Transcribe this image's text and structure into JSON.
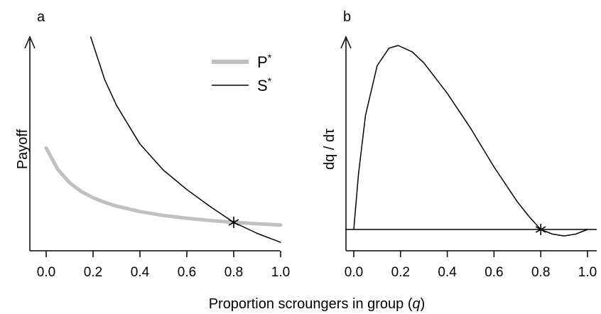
{
  "xlabel_prefix": "Proportion scroungers in group (",
  "xlabel_var": "q",
  "xlabel_suffix": ")",
  "chart_data": [
    {
      "panel": "a",
      "type": "line",
      "ylabel": "Payoff",
      "xlim": [
        0,
        1
      ],
      "ylim": [
        0,
        1
      ],
      "x_ticks": [
        "0.0",
        "0.2",
        "0.4",
        "0.6",
        "0.8",
        "1.0"
      ],
      "y_ticks": [],
      "grid": false,
      "legend_position": "top-right",
      "series": [
        {
          "name": "P",
          "name_superscript": "*",
          "color": "#c0c0c0",
          "x": [
            0.0,
            0.05,
            0.1,
            0.15,
            0.2,
            0.25,
            0.3,
            0.4,
            0.5,
            0.6,
            0.7,
            0.8,
            0.9,
            1.0
          ],
          "y": [
            0.465,
            0.36,
            0.295,
            0.252,
            0.222,
            0.199,
            0.181,
            0.154,
            0.135,
            0.121,
            0.11,
            0.101,
            0.094,
            0.088
          ]
        },
        {
          "name": "S",
          "name_superscript": "*",
          "color": "#000000",
          "x": [
            0.19,
            0.25,
            0.3,
            0.4,
            0.5,
            0.6,
            0.7,
            0.8,
            0.9,
            1.0
          ],
          "y": [
            1.01,
            0.8,
            0.675,
            0.485,
            0.357,
            0.262,
            0.178,
            0.101,
            0.047,
            0.003
          ]
        }
      ],
      "markers": [
        {
          "x": 0.8,
          "y": 0.101,
          "symbol": "asterisk"
        }
      ]
    },
    {
      "panel": "b",
      "type": "line",
      "ylabel": "dq / dτ",
      "xlim": [
        0,
        1
      ],
      "ylim": [
        -0.05,
        1
      ],
      "x_ticks": [
        "0.0",
        "0.2",
        "0.4",
        "0.6",
        "0.8",
        "1.0"
      ],
      "y_ticks": [],
      "grid": false,
      "reference_line_y": 0,
      "series": [
        {
          "color": "#000000",
          "x": [
            0.0,
            0.02,
            0.05,
            0.1,
            0.15,
            0.19,
            0.25,
            0.3,
            0.4,
            0.5,
            0.6,
            0.7,
            0.75,
            0.8,
            0.85,
            0.9,
            0.95,
            1.0
          ],
          "y": [
            0.0,
            0.3,
            0.62,
            0.89,
            0.985,
            1.0,
            0.965,
            0.905,
            0.74,
            0.55,
            0.34,
            0.15,
            0.07,
            0.0,
            -0.025,
            -0.035,
            -0.025,
            0.0
          ]
        }
      ],
      "markers": [
        {
          "x": 0.8,
          "y": 0.0,
          "symbol": "asterisk"
        }
      ]
    }
  ]
}
